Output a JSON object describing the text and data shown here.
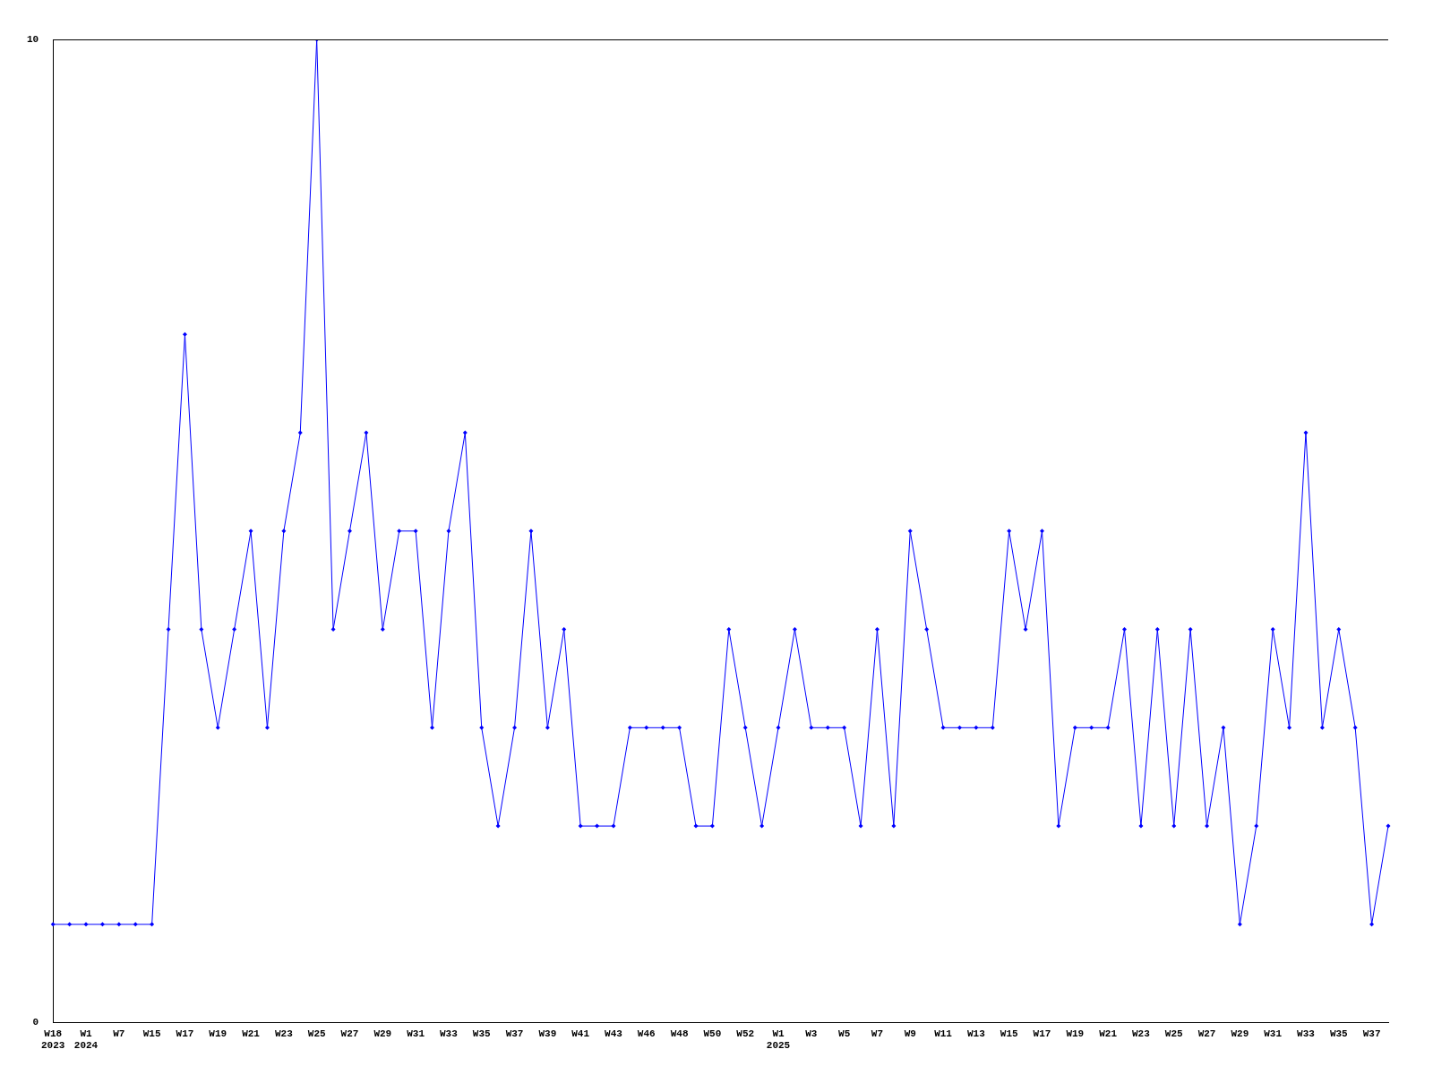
{
  "chart_data": {
    "type": "line",
    "categories": [
      "W18\n2023",
      null,
      "W1\n2024",
      null,
      "W7",
      null,
      "W15",
      null,
      "W17",
      null,
      "W19",
      null,
      "W21",
      null,
      "W23",
      null,
      "W25",
      null,
      "W27",
      null,
      "W29",
      null,
      "W31",
      null,
      "W33",
      null,
      "W35",
      null,
      "W37",
      null,
      "W39",
      null,
      "W41",
      null,
      "W43",
      null,
      "W46",
      null,
      "W48",
      null,
      "W50",
      null,
      "W52",
      null,
      "W1\n2025",
      null,
      "W3",
      null,
      "W5",
      null,
      "W7",
      null,
      "W9",
      null,
      "W11",
      null,
      "W13",
      null,
      "W15",
      null,
      "W17",
      null,
      "W19",
      null,
      "W21",
      null,
      "W23",
      null,
      "W25",
      null,
      "W27",
      null,
      "W29",
      null,
      "W31",
      null,
      "W33",
      null,
      "W35",
      null,
      "W37",
      null
    ],
    "series": [
      {
        "color": "#0000ff",
        "values": [
          1,
          1,
          1,
          1,
          1,
          1,
          1,
          4,
          7,
          4,
          3,
          4,
          5,
          3,
          5,
          6,
          10,
          4,
          5,
          6,
          4,
          5,
          5,
          3,
          5,
          6,
          3,
          2,
          3,
          5,
          3,
          4,
          2,
          2,
          2,
          3,
          3,
          3,
          3,
          2,
          2,
          4,
          3,
          2,
          3,
          4,
          3,
          3,
          3,
          2,
          4,
          2,
          5,
          4,
          3,
          3,
          3,
          3,
          5,
          4,
          5,
          2,
          3,
          3,
          3,
          4,
          2,
          4,
          2,
          4,
          2,
          3,
          1,
          2,
          4,
          3,
          6,
          3,
          4,
          3,
          1,
          2
        ]
      }
    ],
    "ylim": [
      0,
      10
    ],
    "yticks": [
      0,
      10
    ],
    "grid": false,
    "legend": false,
    "marker": "diamond",
    "line_style": "solid"
  }
}
